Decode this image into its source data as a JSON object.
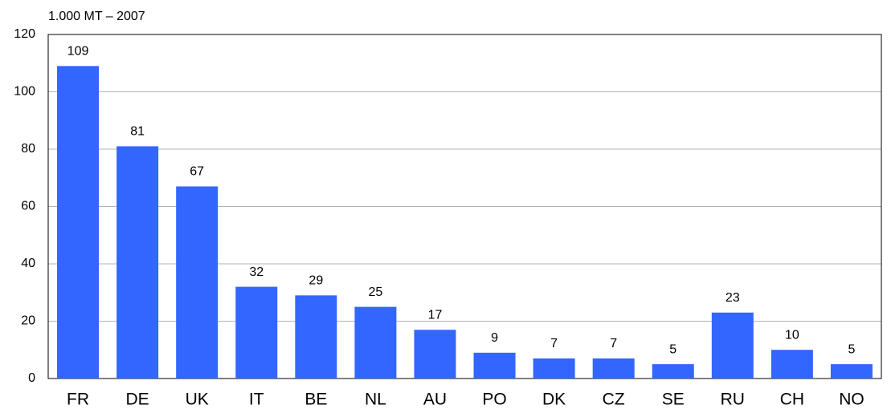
{
  "chart_data": {
    "type": "bar",
    "y_label": "1.000 MT – 2007",
    "categories": [
      "FR",
      "DE",
      "UK",
      "IT",
      "BE",
      "NL",
      "AU",
      "PO",
      "DK",
      "CZ",
      "SE",
      "RU",
      "CH",
      "NO"
    ],
    "values": [
      109,
      81,
      67,
      32,
      29,
      25,
      17,
      9,
      7,
      7,
      5,
      23,
      10,
      5
    ],
    "color": "#3366ff",
    "ylim": [
      0,
      120
    ],
    "yticks": [
      0,
      20,
      40,
      60,
      80,
      100,
      120
    ],
    "grid": true
  }
}
